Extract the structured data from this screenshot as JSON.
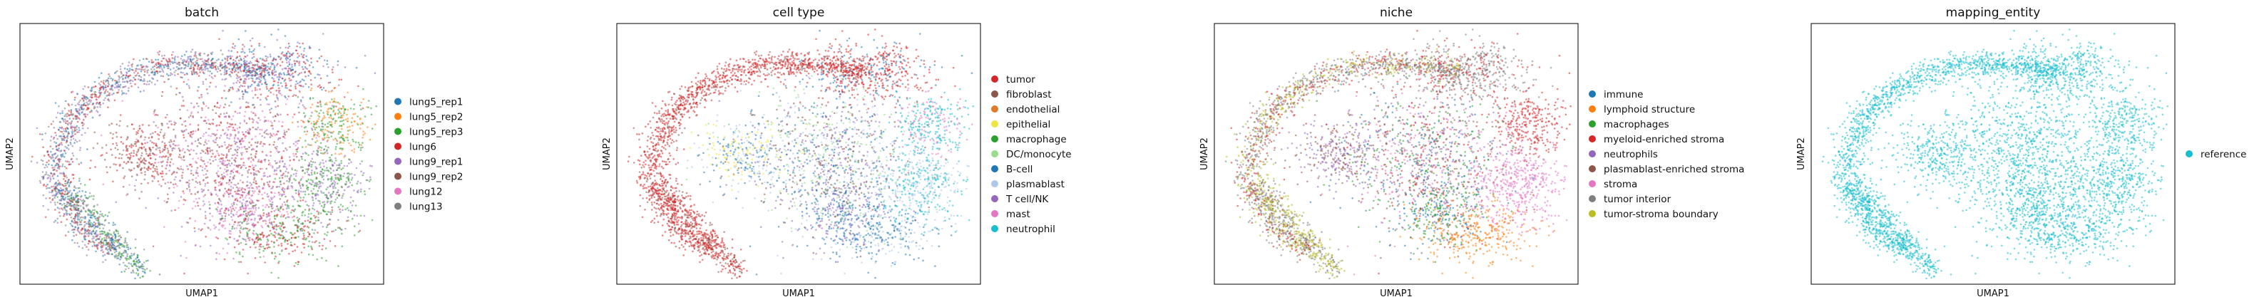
{
  "colors": {
    "cellTypePalette": [
      "#d62728",
      "#8c564b",
      "#e07b2a",
      "#f0e442",
      "#2ca02c",
      "#98df8a",
      "#1f77b4",
      "#aec7e8",
      "#9467bd",
      "#e377c2",
      "#17becf"
    ],
    "nichePalette": [
      "#1f77b4",
      "#ff7f0e",
      "#2ca02c",
      "#d62728",
      "#9467bd",
      "#8c564b",
      "#e377c2",
      "#7f7f7f",
      "#bcbd22"
    ],
    "batchPalette": [
      "#1f77b4",
      "#ff7f0e",
      "#2ca02c",
      "#d62728",
      "#9467bd",
      "#8c564b",
      "#e377c2",
      "#7f7f7f"
    ],
    "mappingPalette": [
      "#17becf"
    ]
  },
  "chart_data": [
    {
      "type": "scatter",
      "title": "batch",
      "xlabel": "UMAP1",
      "ylabel": "UMAP2",
      "legend_position": "right",
      "categories": [
        "lung5_rep1",
        "lung5_rep2",
        "lung5_rep3",
        "lung6",
        "lung9_rep1",
        "lung9_rep2",
        "lung12",
        "lung13"
      ]
    },
    {
      "type": "scatter",
      "title": "cell type",
      "xlabel": "UMAP1",
      "ylabel": "UMAP2",
      "legend_position": "right",
      "categories": [
        "tumor",
        "fibroblast",
        "endothelial",
        "epithelial",
        "macrophage",
        "DC/monocyte",
        "B-cell",
        "plasmablast",
        "T cell/NK",
        "mast",
        "neutrophil"
      ]
    },
    {
      "type": "scatter",
      "title": "niche",
      "xlabel": "UMAP1",
      "ylabel": "UMAP2",
      "legend_position": "right",
      "categories": [
        "immune",
        "lymphoid structure",
        "macrophages",
        "myeloid-enriched stroma",
        "neutrophils",
        "plasmablast-enriched stroma",
        "stroma",
        "tumor interior",
        "tumor-stroma boundary"
      ]
    },
    {
      "type": "scatter",
      "title": "mapping_entity",
      "xlabel": "UMAP1",
      "ylabel": "UMAP2",
      "legend_position": "right",
      "categories": [
        "reference"
      ]
    }
  ]
}
